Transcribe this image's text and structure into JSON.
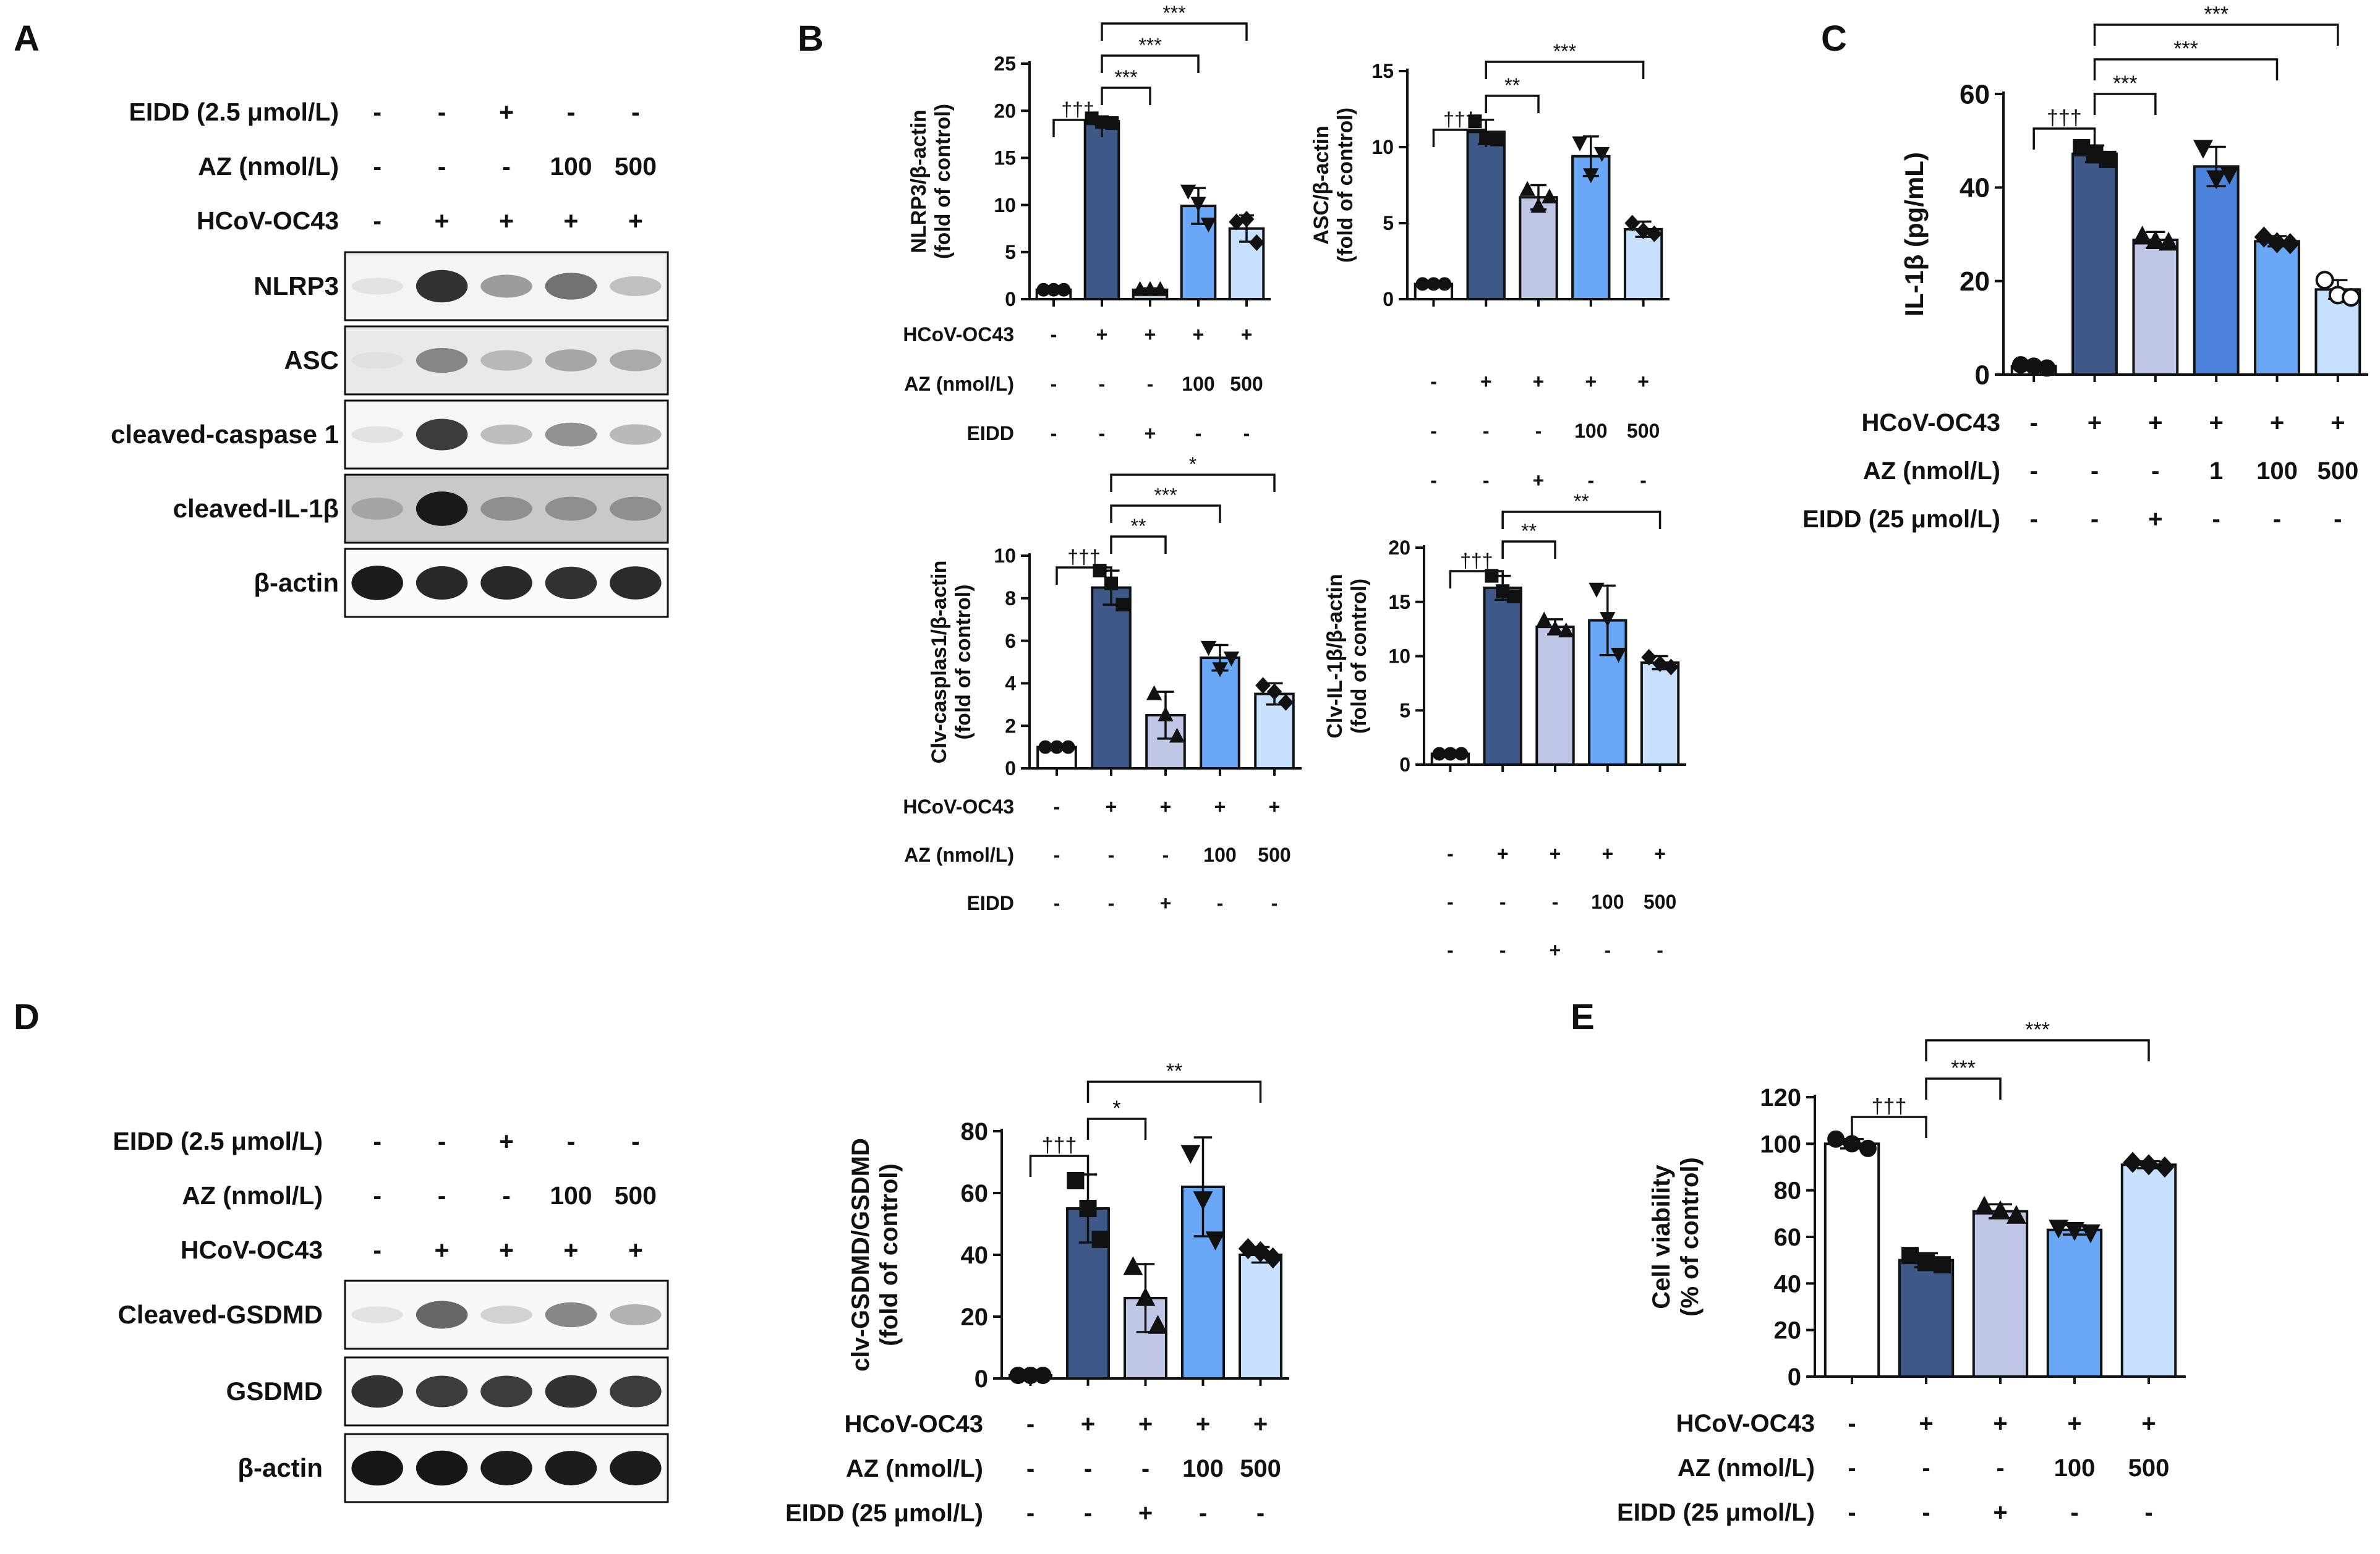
{
  "panel_letters": [
    "A",
    "B",
    "C",
    "D",
    "E"
  ],
  "colors": {
    "ctrl": "#ffffff",
    "virus": "#3e5888",
    "eidd": "#bfc6e6",
    "az1": "#4d82dc",
    "az100": "#6aa8f7",
    "az500": "#c6e0fd",
    "stroke": "#111111"
  },
  "blot_A": {
    "conditions": [
      {
        "label": "EIDD (2.5 μmol/L)",
        "values": [
          "-",
          "-",
          "+",
          "-",
          "-"
        ]
      },
      {
        "label": "AZ (nmol/L)",
        "values": [
          "-",
          "-",
          "-",
          "100",
          "500"
        ]
      },
      {
        "label": "HCoV-OC43",
        "values": [
          "-",
          "+",
          "+",
          "+",
          "+"
        ]
      }
    ],
    "bands": [
      {
        "label": "NLRP3",
        "intensity": [
          0.02,
          0.85,
          0.35,
          0.55,
          0.18
        ],
        "bg": 0.06
      },
      {
        "label": "ASC",
        "intensity": [
          0.03,
          0.45,
          0.22,
          0.3,
          0.28
        ],
        "bg": 0.12
      },
      {
        "label": "cleaved-caspase 1",
        "intensity": [
          0.02,
          0.8,
          0.2,
          0.4,
          0.22
        ],
        "bg": 0.05
      },
      {
        "label": "cleaved-IL-1β",
        "intensity": [
          0.3,
          0.95,
          0.4,
          0.4,
          0.4
        ],
        "bg": 0.3
      },
      {
        "label": "β-actin",
        "intensity": [
          0.95,
          0.9,
          0.9,
          0.85,
          0.88
        ],
        "bg": 0.02
      }
    ]
  },
  "blot_D": {
    "conditions": [
      {
        "label": "EIDD (2.5 μmol/L)",
        "values": [
          "-",
          "-",
          "+",
          "-",
          "-"
        ]
      },
      {
        "label": "AZ (nmol/L)",
        "values": [
          "-",
          "-",
          "-",
          "100",
          "500"
        ]
      },
      {
        "label": "HCoV-OC43",
        "values": [
          "-",
          "+",
          "+",
          "+",
          "+"
        ]
      }
    ],
    "bands": [
      {
        "label": "Cleaved-GSDMD",
        "intensity": [
          0.02,
          0.6,
          0.1,
          0.45,
          0.25
        ],
        "bg": 0.04
      },
      {
        "label": "GSDMD",
        "intensity": [
          0.85,
          0.8,
          0.8,
          0.85,
          0.8
        ],
        "bg": 0.04
      },
      {
        "label": "β-actin",
        "intensity": [
          0.98,
          0.98,
          0.95,
          0.95,
          0.95
        ],
        "bg": 0.04
      }
    ]
  },
  "chart_data": [
    {
      "id": "B_nlrp3",
      "type": "bar",
      "ylabel": "NLRP3/β-actin",
      "ylabel2": "(fold of control)",
      "ylim": [
        0,
        25
      ],
      "yticks": [
        0,
        5,
        10,
        15,
        20,
        25
      ],
      "values": [
        1,
        18.9,
        1,
        9.9,
        7.5
      ],
      "errors": [
        0.15,
        0.35,
        0.15,
        1.9,
        1.4
      ],
      "points": [
        [
          1,
          1,
          1
        ],
        [
          19.2,
          18.8,
          18.7
        ],
        [
          1,
          1,
          1
        ],
        [
          11.5,
          10.2,
          8
        ],
        [
          8.2,
          8.5,
          6
        ]
      ],
      "markers": [
        "circle",
        "square",
        "triangle",
        "triangle-down",
        "diamond"
      ],
      "color_keys": [
        "ctrl",
        "virus",
        "eidd",
        "az100",
        "az500"
      ],
      "conditions": [
        {
          "label": "HCoV-OC43",
          "values": [
            "-",
            "+",
            "+",
            "+",
            "+"
          ]
        },
        {
          "label": "AZ (nmol/L)",
          "values": [
            "-",
            "-",
            "-",
            "100",
            "500"
          ]
        },
        {
          "label": "EIDD",
          "values": [
            "-",
            "-",
            "+",
            "-",
            "-"
          ]
        }
      ],
      "brackets": [
        {
          "from": 0,
          "to": 1,
          "label": "†††",
          "level": 0
        },
        {
          "from": 1,
          "to": 2,
          "label": "***",
          "level": 1
        },
        {
          "from": 1,
          "to": 3,
          "label": "***",
          "level": 2
        },
        {
          "from": 1,
          "to": 4,
          "label": "***",
          "level": 3
        }
      ]
    },
    {
      "id": "B_asc",
      "type": "bar",
      "ylabel": "ASC/β-actin",
      "ylabel2": "(fold of control)",
      "ylim": [
        0,
        15
      ],
      "yticks": [
        0,
        5,
        10,
        15
      ],
      "values": [
        1,
        11,
        6.7,
        9.4,
        4.6
      ],
      "errors": [
        0.15,
        0.8,
        0.8,
        1.3,
        0.5
      ],
      "points": [
        [
          1,
          1,
          1
        ],
        [
          11.7,
          10.6,
          10.5
        ],
        [
          7.2,
          6.1,
          6.7
        ],
        [
          10.3,
          8.2,
          9.6
        ],
        [
          5,
          4.5,
          4.3
        ]
      ],
      "markers": [
        "circle",
        "square",
        "triangle",
        "triangle-down",
        "diamond"
      ],
      "color_keys": [
        "ctrl",
        "virus",
        "eidd",
        "az100",
        "az500"
      ],
      "conditions": [
        {
          "label": "",
          "values": [
            "-",
            "+",
            "+",
            "+",
            "+"
          ]
        },
        {
          "label": "",
          "values": [
            "-",
            "-",
            "-",
            "100",
            "500"
          ]
        },
        {
          "label": "",
          "values": [
            "-",
            "-",
            "+",
            "-",
            "-"
          ]
        }
      ],
      "brackets": [
        {
          "from": 0,
          "to": 1,
          "label": "†††",
          "level": 0
        },
        {
          "from": 1,
          "to": 2,
          "label": "**",
          "level": 1
        },
        {
          "from": 1,
          "to": 4,
          "label": "***",
          "level": 2
        }
      ]
    },
    {
      "id": "B_casp1",
      "type": "bar",
      "ylabel": "Clv-casplas1/β-actin",
      "ylabel2": "(fold of control)",
      "ylim": [
        0,
        10
      ],
      "yticks": [
        0,
        2,
        4,
        6,
        8,
        10
      ],
      "values": [
        1,
        8.5,
        2.5,
        5.2,
        3.5
      ],
      "errors": [
        0.1,
        0.8,
        1.1,
        0.6,
        0.5
      ],
      "points": [
        [
          1,
          1,
          1
        ],
        [
          9.3,
          8.7,
          7.7
        ],
        [
          3.5,
          2.5,
          1.5
        ],
        [
          5.7,
          4.7,
          5.2
        ],
        [
          3.9,
          3.6,
          3.1
        ]
      ],
      "markers": [
        "circle",
        "square",
        "triangle",
        "triangle-down",
        "diamond"
      ],
      "color_keys": [
        "ctrl",
        "virus",
        "eidd",
        "az100",
        "az500"
      ],
      "conditions": [
        {
          "label": "HCoV-OC43",
          "values": [
            "-",
            "+",
            "+",
            "+",
            "+"
          ]
        },
        {
          "label": "AZ (nmol/L)",
          "values": [
            "-",
            "-",
            "-",
            "100",
            "500"
          ]
        },
        {
          "label": "EIDD",
          "values": [
            "-",
            "-",
            "+",
            "-",
            "-"
          ]
        }
      ],
      "brackets": [
        {
          "from": 0,
          "to": 1,
          "label": "†††",
          "level": 0
        },
        {
          "from": 1,
          "to": 2,
          "label": "**",
          "level": 1
        },
        {
          "from": 1,
          "to": 3,
          "label": "***",
          "level": 2
        },
        {
          "from": 1,
          "to": 4,
          "label": "*",
          "level": 3
        }
      ]
    },
    {
      "id": "B_il1b",
      "type": "bar",
      "ylabel": "Clv-IL-1β/β-actin",
      "ylabel2": "(fold of control)",
      "ylim": [
        0,
        20
      ],
      "yticks": [
        0,
        5,
        10,
        15,
        20
      ],
      "values": [
        1,
        16.3,
        12.7,
        13.3,
        9.4
      ],
      "errors": [
        0.1,
        1.1,
        0.7,
        3.2,
        0.6
      ],
      "points": [
        [
          1,
          1,
          1
        ],
        [
          17.4,
          16,
          15.5
        ],
        [
          13.3,
          12.5,
          12.3
        ],
        [
          16.2,
          13.5,
          10.2
        ],
        [
          9.9,
          9.3,
          9
        ]
      ],
      "markers": [
        "circle",
        "square",
        "triangle",
        "triangle-down",
        "diamond"
      ],
      "color_keys": [
        "ctrl",
        "virus",
        "eidd",
        "az100",
        "az500"
      ],
      "conditions": [
        {
          "label": "",
          "values": [
            "-",
            "+",
            "+",
            "+",
            "+"
          ]
        },
        {
          "label": "",
          "values": [
            "-",
            "-",
            "-",
            "100",
            "500"
          ]
        },
        {
          "label": "",
          "values": [
            "-",
            "-",
            "+",
            "-",
            "-"
          ]
        }
      ],
      "brackets": [
        {
          "from": 0,
          "to": 1,
          "label": "†††",
          "level": 0
        },
        {
          "from": 1,
          "to": 2,
          "label": "**",
          "level": 1
        },
        {
          "from": 1,
          "to": 4,
          "label": "**",
          "level": 2
        }
      ]
    },
    {
      "id": "C",
      "type": "bar",
      "ylabel": "IL-1β (pg/mL)",
      "ylabel2": "",
      "ylim": [
        0,
        60
      ],
      "yticks": [
        0,
        20,
        40,
        60
      ],
      "values": [
        1.8,
        47.2,
        28.8,
        44.5,
        28.5,
        18.2
      ],
      "errors": [
        0.3,
        1.8,
        1.7,
        4.2,
        1.1,
        2
      ],
      "points": [
        [
          2.1,
          1.8,
          1.4
        ],
        [
          48.5,
          47,
          46
        ],
        [
          29.5,
          28.5,
          28.2
        ],
        [
          48.5,
          42,
          43
        ],
        [
          29.4,
          28.2,
          28
        ],
        [
          20.2,
          17,
          16.5
        ]
      ],
      "markers": [
        "circle",
        "square",
        "triangle",
        "triangle-down",
        "diamond",
        "circle-open"
      ],
      "color_keys": [
        "ctrl",
        "virus",
        "eidd",
        "az1",
        "az100",
        "az500"
      ],
      "conditions": [
        {
          "label": "HCoV-OC43",
          "values": [
            "-",
            "+",
            "+",
            "+",
            "+",
            "+"
          ]
        },
        {
          "label": "AZ (nmol/L)",
          "values": [
            "-",
            "-",
            "-",
            "1",
            "100",
            "500"
          ]
        },
        {
          "label": "EIDD (25 μmol/L)",
          "values": [
            "-",
            "-",
            "+",
            "-",
            "-",
            "-"
          ]
        }
      ],
      "brackets": [
        {
          "from": 0,
          "to": 1,
          "label": "†††",
          "level": 0
        },
        {
          "from": 1,
          "to": 2,
          "label": "***",
          "level": 1
        },
        {
          "from": 1,
          "to": 4,
          "label": "***",
          "level": 2
        },
        {
          "from": 1,
          "to": 5,
          "label": "***",
          "level": 3
        }
      ]
    },
    {
      "id": "D_gsdmd",
      "type": "bar",
      "ylabel": "clv-GSDMD/GSDMD",
      "ylabel2": "(fold of control)",
      "ylim": [
        0,
        80
      ],
      "yticks": [
        0,
        20,
        40,
        60,
        80
      ],
      "values": [
        1,
        55,
        26,
        62,
        40
      ],
      "errors": [
        0.3,
        11,
        11,
        16,
        2.5
      ],
      "points": [
        [
          1,
          1,
          1
        ],
        [
          64,
          55,
          45
        ],
        [
          36,
          26,
          17
        ],
        [
          73,
          58,
          45
        ],
        [
          42,
          41,
          39
        ]
      ],
      "markers": [
        "circle",
        "square",
        "triangle",
        "triangle-down",
        "diamond"
      ],
      "color_keys": [
        "ctrl",
        "virus",
        "eidd",
        "az100",
        "az500"
      ],
      "conditions": [
        {
          "label": "HCoV-OC43",
          "values": [
            "-",
            "+",
            "+",
            "+",
            "+"
          ]
        },
        {
          "label": "AZ (nmol/L)",
          "values": [
            "-",
            "-",
            "-",
            "100",
            "500"
          ]
        },
        {
          "label": "EIDD (25 μmol/L)",
          "values": [
            "-",
            "-",
            "+",
            "-",
            "-"
          ]
        }
      ],
      "brackets": [
        {
          "from": 0,
          "to": 1,
          "label": "†††",
          "level": 0
        },
        {
          "from": 1,
          "to": 2,
          "label": "*",
          "level": 1
        },
        {
          "from": 1,
          "to": 4,
          "label": "**",
          "level": 2
        }
      ]
    },
    {
      "id": "E",
      "type": "bar",
      "ylabel": "Cell viability",
      "ylabel2": "(% of control)",
      "ylim": [
        0,
        120
      ],
      "yticks": [
        0,
        20,
        40,
        60,
        80,
        100,
        120
      ],
      "values": [
        100,
        50,
        71,
        63,
        91
      ],
      "errors": [
        2,
        3,
        3,
        2,
        1.5
      ],
      "points": [
        [
          102,
          100,
          98
        ],
        [
          52,
          49,
          48
        ],
        [
          73,
          71,
          69
        ],
        [
          64,
          63,
          62
        ],
        [
          92,
          91,
          90
        ]
      ],
      "markers": [
        "circle",
        "square",
        "triangle",
        "triangle-down",
        "diamond"
      ],
      "color_keys": [
        "ctrl",
        "virus",
        "eidd",
        "az100",
        "az500"
      ],
      "conditions": [
        {
          "label": "HCoV-OC43",
          "values": [
            "-",
            "+",
            "+",
            "+",
            "+"
          ]
        },
        {
          "label": "AZ (nmol/L)",
          "values": [
            "-",
            "-",
            "-",
            "100",
            "500"
          ]
        },
        {
          "label": "EIDD (25 μmol/L)",
          "values": [
            "-",
            "-",
            "+",
            "-",
            "-"
          ]
        }
      ],
      "brackets": [
        {
          "from": 0,
          "to": 1,
          "label": "†††",
          "level": 0
        },
        {
          "from": 1,
          "to": 2,
          "label": "***",
          "level": 1
        },
        {
          "from": 1,
          "to": 4,
          "label": "***",
          "level": 2
        }
      ]
    }
  ]
}
